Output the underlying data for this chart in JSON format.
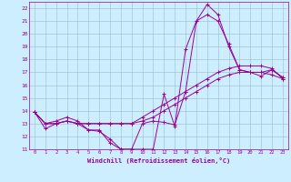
{
  "xlabel": "Windchill (Refroidissement éolien,°C)",
  "bg_color": "#cceeff",
  "grid_color": "#99bbcc",
  "line_color": "#990099",
  "xlim": [
    -0.5,
    23.5
  ],
  "ylim": [
    11,
    22.5
  ],
  "yticks": [
    11,
    12,
    13,
    14,
    15,
    16,
    17,
    18,
    19,
    20,
    21,
    22
  ],
  "xticks": [
    0,
    1,
    2,
    3,
    4,
    5,
    6,
    7,
    8,
    9,
    10,
    11,
    12,
    13,
    14,
    15,
    16,
    17,
    18,
    19,
    20,
    21,
    22,
    23
  ],
  "lines": [
    [
      0,
      13.9,
      1,
      12.6,
      2,
      13.0,
      3,
      13.2,
      4,
      13.0,
      5,
      12.5,
      6,
      12.5,
      7,
      11.5,
      8,
      11.0,
      9,
      11.0,
      10,
      11.0,
      11,
      11.0,
      12,
      15.3,
      13,
      12.8,
      14,
      18.8,
      15,
      21.0,
      16,
      21.5,
      17,
      21.0,
      18,
      19.2,
      19,
      17.2,
      20,
      17.0,
      21,
      16.7,
      22,
      17.2,
      23,
      16.6
    ],
    [
      0,
      13.9,
      1,
      13.0,
      2,
      13.2,
      3,
      13.5,
      4,
      13.2,
      5,
      12.5,
      6,
      12.4,
      7,
      11.8,
      8,
      11.0,
      9,
      11.0,
      10,
      13.0,
      11,
      13.2,
      12,
      13.1,
      13,
      12.9,
      14,
      15.5,
      15,
      21.0,
      16,
      22.3,
      17,
      21.5,
      18,
      19.0,
      19,
      17.2,
      20,
      17.0,
      21,
      17.0,
      22,
      17.2,
      23,
      16.6
    ],
    [
      0,
      13.9,
      1,
      13.0,
      2,
      13.0,
      3,
      13.2,
      4,
      13.0,
      5,
      13.0,
      6,
      13.0,
      7,
      13.0,
      8,
      13.0,
      9,
      13.0,
      10,
      13.5,
      11,
      14.0,
      12,
      14.5,
      13,
      15.0,
      14,
      15.5,
      15,
      16.0,
      16,
      16.5,
      17,
      17.0,
      18,
      17.3,
      19,
      17.5,
      20,
      17.5,
      21,
      17.5,
      22,
      17.3,
      23,
      16.5
    ],
    [
      0,
      13.9,
      1,
      13.0,
      2,
      13.0,
      3,
      13.2,
      4,
      13.0,
      5,
      13.0,
      6,
      13.0,
      7,
      13.0,
      8,
      13.0,
      9,
      13.0,
      10,
      13.2,
      11,
      13.5,
      12,
      14.0,
      13,
      14.5,
      14,
      15.0,
      15,
      15.5,
      16,
      16.0,
      17,
      16.5,
      18,
      16.8,
      19,
      17.0,
      20,
      17.0,
      21,
      17.0,
      22,
      16.8,
      23,
      16.5
    ]
  ]
}
